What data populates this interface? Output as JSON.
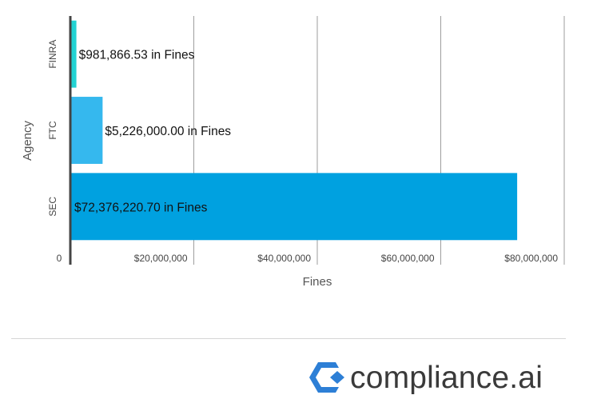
{
  "chart_data": {
    "type": "bar",
    "orientation": "horizontal",
    "categories": [
      "FINRA",
      "FTC",
      "SEC"
    ],
    "values": [
      981866.53,
      5226000.0,
      72376220.7
    ],
    "data_labels": [
      "$981,866.53 in Fines",
      "$5,226,000.00 in Fines",
      "$72,376,220.70 in Fines"
    ],
    "colors": [
      "#22d3d3",
      "#35b8ee",
      "#00a1e0"
    ],
    "xlabel": "Fines",
    "ylabel": "Agency",
    "xlim": [
      0,
      80000000
    ],
    "xticks": [
      0,
      20000000,
      40000000,
      60000000,
      80000000
    ],
    "xtick_labels": [
      "0",
      "$20,000,000",
      "$40,000,000",
      "$60,000,000",
      "$80,000,000"
    ],
    "grid": true
  },
  "footer": {
    "brand_text": "compliance.ai",
    "brand_logo_icon": "compliance-ai-logo-icon",
    "brand_colors": [
      "#2d7fd6",
      "#4b4b4b"
    ]
  }
}
